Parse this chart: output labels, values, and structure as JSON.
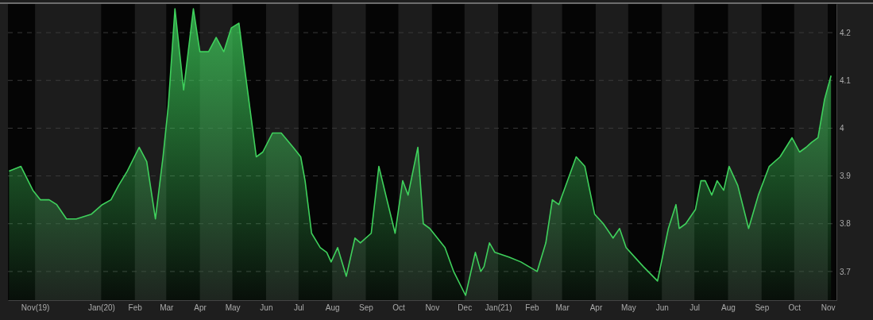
{
  "chart_data": {
    "type": "area",
    "grid": "y",
    "xlim": [
      "2019-10-07",
      "2021-11-09"
    ],
    "ylim": [
      3.64,
      4.26
    ],
    "yticks": [
      3.7,
      3.8,
      3.9,
      4.0,
      4.1,
      4.2
    ],
    "xticks": [
      {
        "value": "2019-11-01",
        "label": "Nov(19)"
      },
      {
        "value": "2020-01-01",
        "label": "Jan(20)"
      },
      {
        "value": "2020-02-01",
        "label": "Feb"
      },
      {
        "value": "2020-03-01",
        "label": "Mar"
      },
      {
        "value": "2020-04-01",
        "label": "Apr"
      },
      {
        "value": "2020-05-01",
        "label": "May"
      },
      {
        "value": "2020-06-01",
        "label": "Jun"
      },
      {
        "value": "2020-07-01",
        "label": "Jul"
      },
      {
        "value": "2020-08-01",
        "label": "Aug"
      },
      {
        "value": "2020-09-01",
        "label": "Sep"
      },
      {
        "value": "2020-10-01",
        "label": "Oct"
      },
      {
        "value": "2020-11-01",
        "label": "Nov"
      },
      {
        "value": "2020-12-01",
        "label": "Dec"
      },
      {
        "value": "2021-01-01",
        "label": "Jan(21)"
      },
      {
        "value": "2021-02-01",
        "label": "Feb"
      },
      {
        "value": "2021-03-01",
        "label": "Mar"
      },
      {
        "value": "2021-04-01",
        "label": "Apr"
      },
      {
        "value": "2021-05-01",
        "label": "May"
      },
      {
        "value": "2021-06-01",
        "label": "Jun"
      },
      {
        "value": "2021-07-01",
        "label": "Jul"
      },
      {
        "value": "2021-08-01",
        "label": "Aug"
      },
      {
        "value": "2021-09-01",
        "label": "Sep"
      },
      {
        "value": "2021-10-01",
        "label": "Oct"
      },
      {
        "value": "2021-11-01",
        "label": "Nov"
      }
    ],
    "series": [
      {
        "color": "#3fd05c",
        "x": [
          "2019-10-08",
          "2019-10-19",
          "2019-10-30",
          "2019-11-06",
          "2019-11-14",
          "2019-11-21",
          "2019-11-30",
          "2019-12-09",
          "2019-12-23",
          "2020-01-02",
          "2020-01-10",
          "2020-01-17",
          "2020-01-25",
          "2020-02-05",
          "2020-02-12",
          "2020-02-20",
          "2020-02-27",
          "2020-03-03",
          "2020-03-09",
          "2020-03-17",
          "2020-03-26",
          "2020-04-01",
          "2020-04-09",
          "2020-04-16",
          "2020-04-23",
          "2020-04-30",
          "2020-05-07",
          "2020-05-12",
          "2020-05-23",
          "2020-05-29",
          "2020-06-07",
          "2020-06-15",
          "2020-06-26",
          "2020-07-03",
          "2020-07-07",
          "2020-07-13",
          "2020-07-21",
          "2020-07-27",
          "2020-07-31",
          "2020-08-06",
          "2020-08-14",
          "2020-08-22",
          "2020-08-27",
          "2020-09-06",
          "2020-09-13",
          "2020-09-28",
          "2020-10-05",
          "2020-10-10",
          "2020-10-19",
          "2020-10-24",
          "2020-10-30",
          "2020-11-13",
          "2020-11-21",
          "2020-12-02",
          "2020-12-11",
          "2020-12-16",
          "2020-12-19",
          "2020-12-24",
          "2020-12-29",
          "2021-01-11",
          "2021-01-22",
          "2021-02-06",
          "2021-02-14",
          "2021-02-20",
          "2021-02-26",
          "2021-03-14",
          "2021-03-22",
          "2021-03-31",
          "2021-04-08",
          "2021-04-17",
          "2021-04-23",
          "2021-04-29",
          "2021-05-07",
          "2021-05-15",
          "2021-05-28",
          "2021-06-07",
          "2021-06-14",
          "2021-06-17",
          "2021-06-23",
          "2021-07-02",
          "2021-07-07",
          "2021-07-11",
          "2021-07-17",
          "2021-07-22",
          "2021-07-28",
          "2021-08-02",
          "2021-08-10",
          "2021-08-20",
          "2021-08-29",
          "2021-09-08",
          "2021-09-18",
          "2021-09-29",
          "2021-10-06",
          "2021-10-12",
          "2021-10-17",
          "2021-10-23",
          "2021-10-29",
          "2021-11-04"
        ],
        "values": [
          3.91,
          3.92,
          3.87,
          3.85,
          3.85,
          3.84,
          3.81,
          3.81,
          3.82,
          3.84,
          3.85,
          3.88,
          3.91,
          3.96,
          3.93,
          3.81,
          3.94,
          4.05,
          4.25,
          4.08,
          4.25,
          4.16,
          4.16,
          4.19,
          4.16,
          4.21,
          4.22,
          4.13,
          3.94,
          3.95,
          3.99,
          3.99,
          3.96,
          3.94,
          3.89,
          3.78,
          3.75,
          3.74,
          3.72,
          3.75,
          3.69,
          3.77,
          3.76,
          3.78,
          3.92,
          3.78,
          3.89,
          3.86,
          3.96,
          3.8,
          3.79,
          3.75,
          3.7,
          3.65,
          3.74,
          3.7,
          3.71,
          3.76,
          3.74,
          3.73,
          3.72,
          3.7,
          3.76,
          3.85,
          3.84,
          3.94,
          3.92,
          3.82,
          3.8,
          3.77,
          3.79,
          3.75,
          3.73,
          3.71,
          3.68,
          3.79,
          3.84,
          3.79,
          3.8,
          3.83,
          3.89,
          3.89,
          3.86,
          3.89,
          3.87,
          3.92,
          3.88,
          3.79,
          3.86,
          3.92,
          3.94,
          3.98,
          3.95,
          3.96,
          3.97,
          3.98,
          4.06,
          4.11
        ]
      }
    ]
  }
}
